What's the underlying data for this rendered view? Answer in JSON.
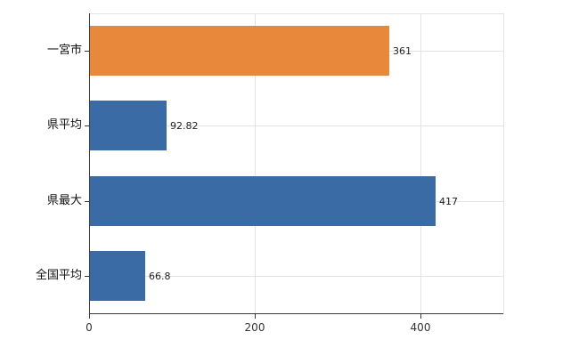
{
  "chart_data": {
    "type": "bar",
    "orientation": "horizontal",
    "categories": [
      "一宮市",
      "県平均",
      "県最大",
      "全国平均"
    ],
    "values": [
      361,
      92.82,
      417,
      66.8
    ],
    "value_labels": [
      "361",
      "92.82",
      "417",
      "66.8"
    ],
    "series": [
      {
        "name": "values",
        "values": [
          361,
          92.82,
          417,
          66.8
        ]
      }
    ],
    "bar_colors": [
      "#E8883B",
      "#3B6BA5",
      "#3B6BA5",
      "#3B6BA5"
    ],
    "xlim": [
      0,
      500
    ],
    "xticks": [
      0,
      200,
      400
    ],
    "xtick_labels": [
      "0",
      "200",
      "400"
    ],
    "grid": true,
    "title": "",
    "xlabel": "",
    "ylabel": ""
  },
  "colors": {
    "axis": "#3a3a3a",
    "grid": "#e3e3e3",
    "orange_bar": "#E8883B",
    "blue_bar": "#3B6BA5",
    "background": "#ffffff"
  }
}
